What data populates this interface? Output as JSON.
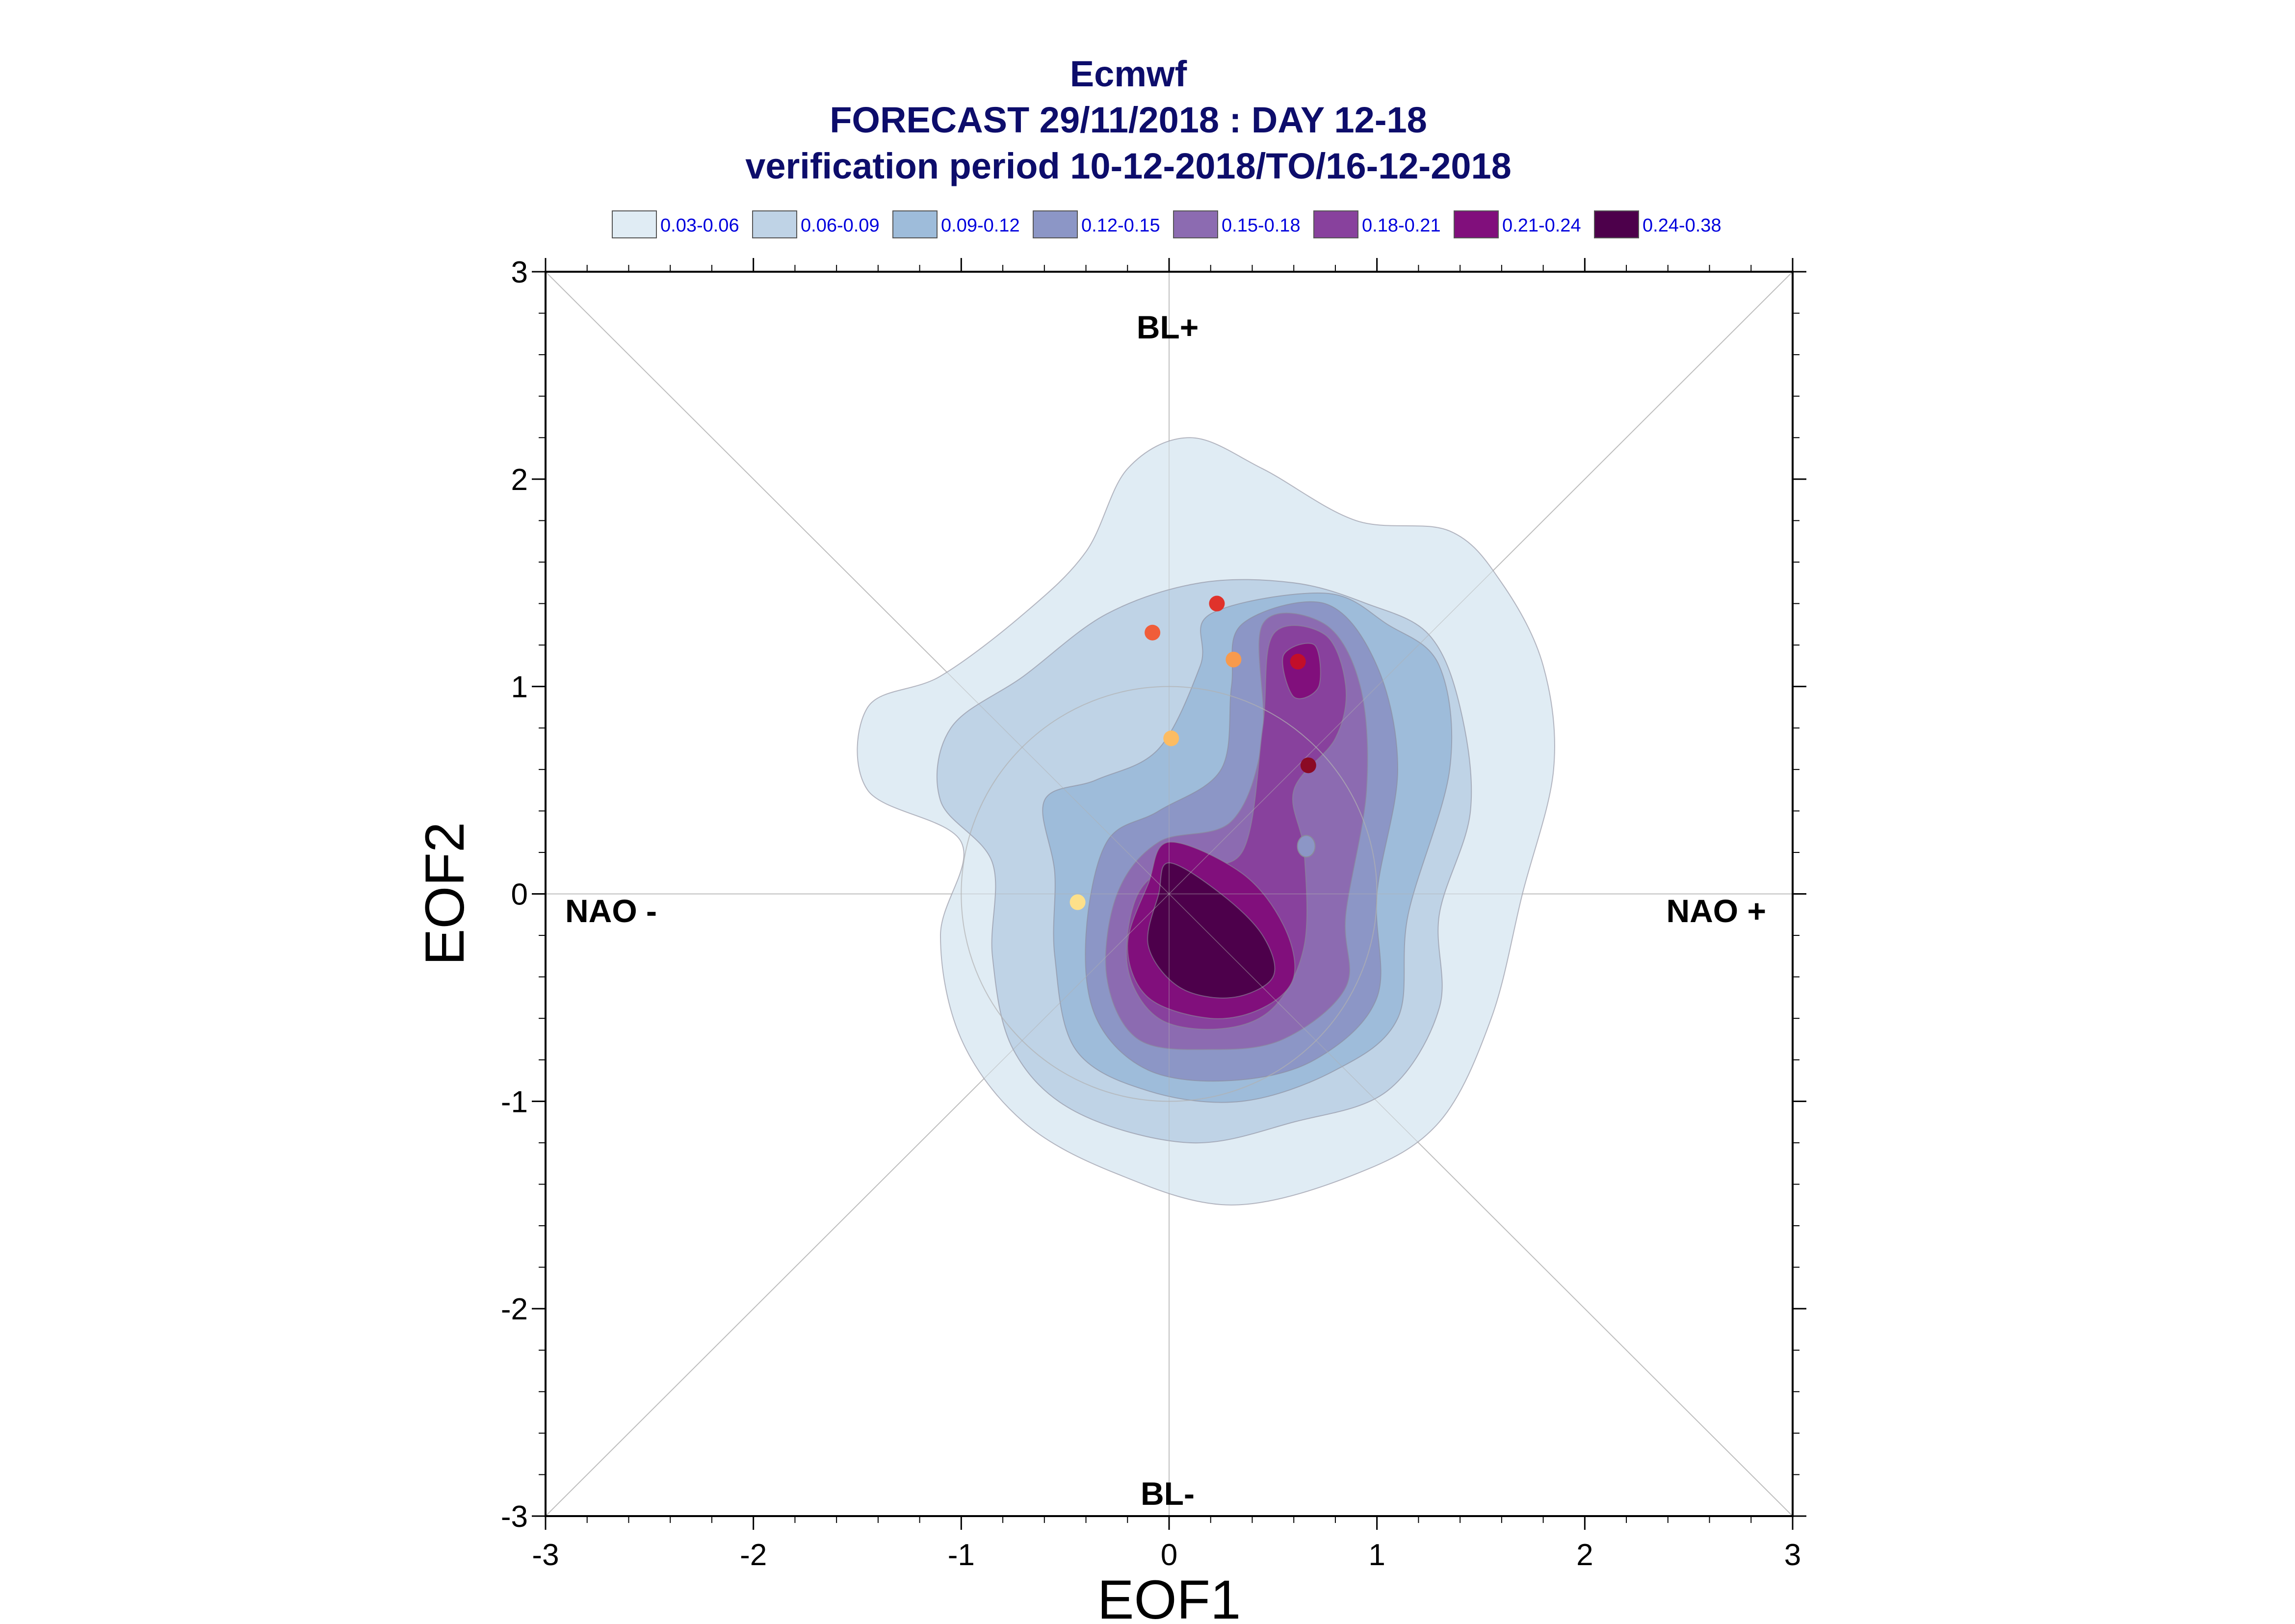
{
  "chart_data": {
    "type": "contour",
    "title_lines": [
      "Ecmwf",
      "FORECAST 29/11/2018 : DAY 12-18",
      "verification period 10-12-2018/TO/16-12-2018"
    ],
    "xlabel": "EOF1",
    "ylabel": "EOF2",
    "xlim": [
      -3,
      3
    ],
    "ylim": [
      -3,
      3
    ],
    "x_ticks": [
      "-3",
      "-2",
      "-1",
      "0",
      "1",
      "2",
      "3"
    ],
    "y_ticks": [
      "-3",
      "-2",
      "-1",
      "0",
      "1",
      "2",
      "3"
    ],
    "regime_labels": {
      "top": "BL+",
      "bottom": "BL-",
      "left": "NAO -",
      "right": "NAO +"
    },
    "legend": [
      {
        "label": "0.03-0.06",
        "color": "#e0ecf4"
      },
      {
        "label": "0.06-0.09",
        "color": "#bfd3e6"
      },
      {
        "label": "0.09-0.12",
        "color": "#9ebcda"
      },
      {
        "label": "0.12-0.15",
        "color": "#8c96c6"
      },
      {
        "label": "0.15-0.18",
        "color": "#8c6bb1"
      },
      {
        "label": "0.18-0.21",
        "color": "#88419d"
      },
      {
        "label": "0.21-0.24",
        "color": "#810f7c"
      },
      {
        "label": "0.24-0.38",
        "color": "#4d004b"
      }
    ],
    "density_levels": [
      {
        "level": "0.03-0.06",
        "points": [
          [
            0.1,
            2.2
          ],
          [
            0.45,
            2.05
          ],
          [
            0.9,
            1.8
          ],
          [
            1.35,
            1.75
          ],
          [
            1.6,
            1.5
          ],
          [
            1.8,
            1.1
          ],
          [
            1.85,
            0.6
          ],
          [
            1.7,
            0.0
          ],
          [
            1.55,
            -0.6
          ],
          [
            1.3,
            -1.1
          ],
          [
            0.9,
            -1.35
          ],
          [
            0.3,
            -1.5
          ],
          [
            -0.25,
            -1.35
          ],
          [
            -0.7,
            -1.1
          ],
          [
            -1.0,
            -0.7
          ],
          [
            -1.1,
            -0.2
          ],
          [
            -1.0,
            0.25
          ],
          [
            -1.45,
            0.5
          ],
          [
            -1.45,
            0.9
          ],
          [
            -1.1,
            1.05
          ],
          [
            -0.7,
            1.35
          ],
          [
            -0.4,
            1.65
          ],
          [
            -0.2,
            2.05
          ]
        ]
      },
      {
        "level": "0.06-0.09",
        "points": [
          [
            0.15,
            1.5
          ],
          [
            0.6,
            1.5
          ],
          [
            0.95,
            1.4
          ],
          [
            1.25,
            1.25
          ],
          [
            1.4,
            0.9
          ],
          [
            1.45,
            0.4
          ],
          [
            1.3,
            -0.1
          ],
          [
            1.3,
            -0.55
          ],
          [
            1.05,
            -0.95
          ],
          [
            0.6,
            -1.1
          ],
          [
            0.1,
            -1.2
          ],
          [
            -0.45,
            -1.05
          ],
          [
            -0.75,
            -0.75
          ],
          [
            -0.85,
            -0.3
          ],
          [
            -0.85,
            0.15
          ],
          [
            -1.1,
            0.45
          ],
          [
            -1.05,
            0.8
          ],
          [
            -0.7,
            1.05
          ],
          [
            -0.3,
            1.35
          ]
        ]
      },
      {
        "level": "0.09-0.12",
        "points": [
          [
            0.2,
            1.35
          ],
          [
            0.75,
            1.45
          ],
          [
            1.05,
            1.3
          ],
          [
            1.3,
            1.1
          ],
          [
            1.35,
            0.6
          ],
          [
            1.15,
            -0.1
          ],
          [
            1.1,
            -0.6
          ],
          [
            0.8,
            -0.85
          ],
          [
            0.35,
            -1.0
          ],
          [
            -0.1,
            -0.95
          ],
          [
            -0.45,
            -0.75
          ],
          [
            -0.55,
            -0.3
          ],
          [
            -0.55,
            0.1
          ],
          [
            -0.6,
            0.45
          ],
          [
            -0.35,
            0.55
          ],
          [
            -0.05,
            0.7
          ],
          [
            0.15,
            1.1
          ]
        ]
      },
      {
        "level": "0.12-0.15",
        "points": [
          [
            0.35,
            1.3
          ],
          [
            0.75,
            1.4
          ],
          [
            1.0,
            1.1
          ],
          [
            1.1,
            0.6
          ],
          [
            1.0,
            0.0
          ],
          [
            1.0,
            -0.5
          ],
          [
            0.7,
            -0.8
          ],
          [
            0.3,
            -0.9
          ],
          [
            -0.1,
            -0.85
          ],
          [
            -0.35,
            -0.6
          ],
          [
            -0.4,
            -0.2
          ],
          [
            -0.3,
            0.25
          ],
          [
            -0.05,
            0.4
          ],
          [
            0.25,
            0.6
          ],
          [
            0.3,
            1.0
          ]
        ]
      },
      {
        "level": "0.15-0.18",
        "points": [
          [
            0.45,
            1.3
          ],
          [
            0.75,
            1.3
          ],
          [
            0.92,
            1.0
          ],
          [
            0.95,
            0.5
          ],
          [
            0.85,
            -0.1
          ],
          [
            0.85,
            -0.45
          ],
          [
            0.55,
            -0.7
          ],
          [
            0.2,
            -0.75
          ],
          [
            -0.15,
            -0.7
          ],
          [
            -0.3,
            -0.4
          ],
          [
            -0.25,
            0.0
          ],
          [
            -0.05,
            0.25
          ],
          [
            0.3,
            0.35
          ],
          [
            0.45,
            0.75
          ]
        ]
      },
      {
        "level": "0.18-0.21",
        "points": [
          [
            0.5,
            1.25
          ],
          [
            0.75,
            1.25
          ],
          [
            0.85,
            1.0
          ],
          [
            0.8,
            0.75
          ],
          [
            0.6,
            0.5
          ],
          [
            0.65,
            0.2
          ],
          [
            0.65,
            -0.25
          ],
          [
            0.5,
            -0.55
          ],
          [
            0.25,
            -0.65
          ],
          [
            -0.05,
            -0.6
          ],
          [
            -0.2,
            -0.35
          ],
          [
            -0.15,
            0.0
          ],
          [
            0.05,
            0.15
          ],
          [
            0.35,
            0.2
          ],
          [
            0.45,
            0.8
          ]
        ]
      },
      {
        "level": "0.21-0.24",
        "points": [
          [
            0.0,
            0.25
          ],
          [
            0.35,
            0.1
          ],
          [
            0.55,
            -0.15
          ],
          [
            0.6,
            -0.4
          ],
          [
            0.45,
            -0.55
          ],
          [
            0.2,
            -0.6
          ],
          [
            -0.1,
            -0.5
          ],
          [
            -0.2,
            -0.25
          ],
          [
            -0.1,
            0.05
          ]
        ]
      },
      {
        "level": "0.24-0.38",
        "points": [
          [
            0.0,
            0.15
          ],
          [
            0.25,
            0.0
          ],
          [
            0.45,
            -0.2
          ],
          [
            0.5,
            -0.4
          ],
          [
            0.3,
            -0.5
          ],
          [
            0.05,
            -0.45
          ],
          [
            -0.1,
            -0.25
          ],
          [
            -0.05,
            0.0
          ]
        ]
      }
    ],
    "secondary_maxima": [
      {
        "level": "0.21-0.24",
        "points": [
          [
            0.55,
            1.15
          ],
          [
            0.7,
            1.2
          ],
          [
            0.72,
            1.0
          ],
          [
            0.6,
            0.95
          ]
        ]
      }
    ],
    "points": [
      {
        "x": -0.08,
        "y": 1.26,
        "color": "#f05d3a"
      },
      {
        "x": 0.23,
        "y": 1.4,
        "color": "#e0322b"
      },
      {
        "x": 0.31,
        "y": 1.13,
        "color": "#f89a4c"
      },
      {
        "x": 0.62,
        "y": 1.12,
        "color": "#c20e2a"
      },
      {
        "x": 0.01,
        "y": 0.75,
        "color": "#fcbc63"
      },
      {
        "x": 0.67,
        "y": 0.62,
        "color": "#8b0a24"
      },
      {
        "x": -0.44,
        "y": -0.04,
        "color": "#fde08a"
      }
    ],
    "small_blob": {
      "x": 0.66,
      "y": 0.23,
      "color": "#8c96c6"
    },
    "unit_circle_radius": 1,
    "grid": false
  }
}
